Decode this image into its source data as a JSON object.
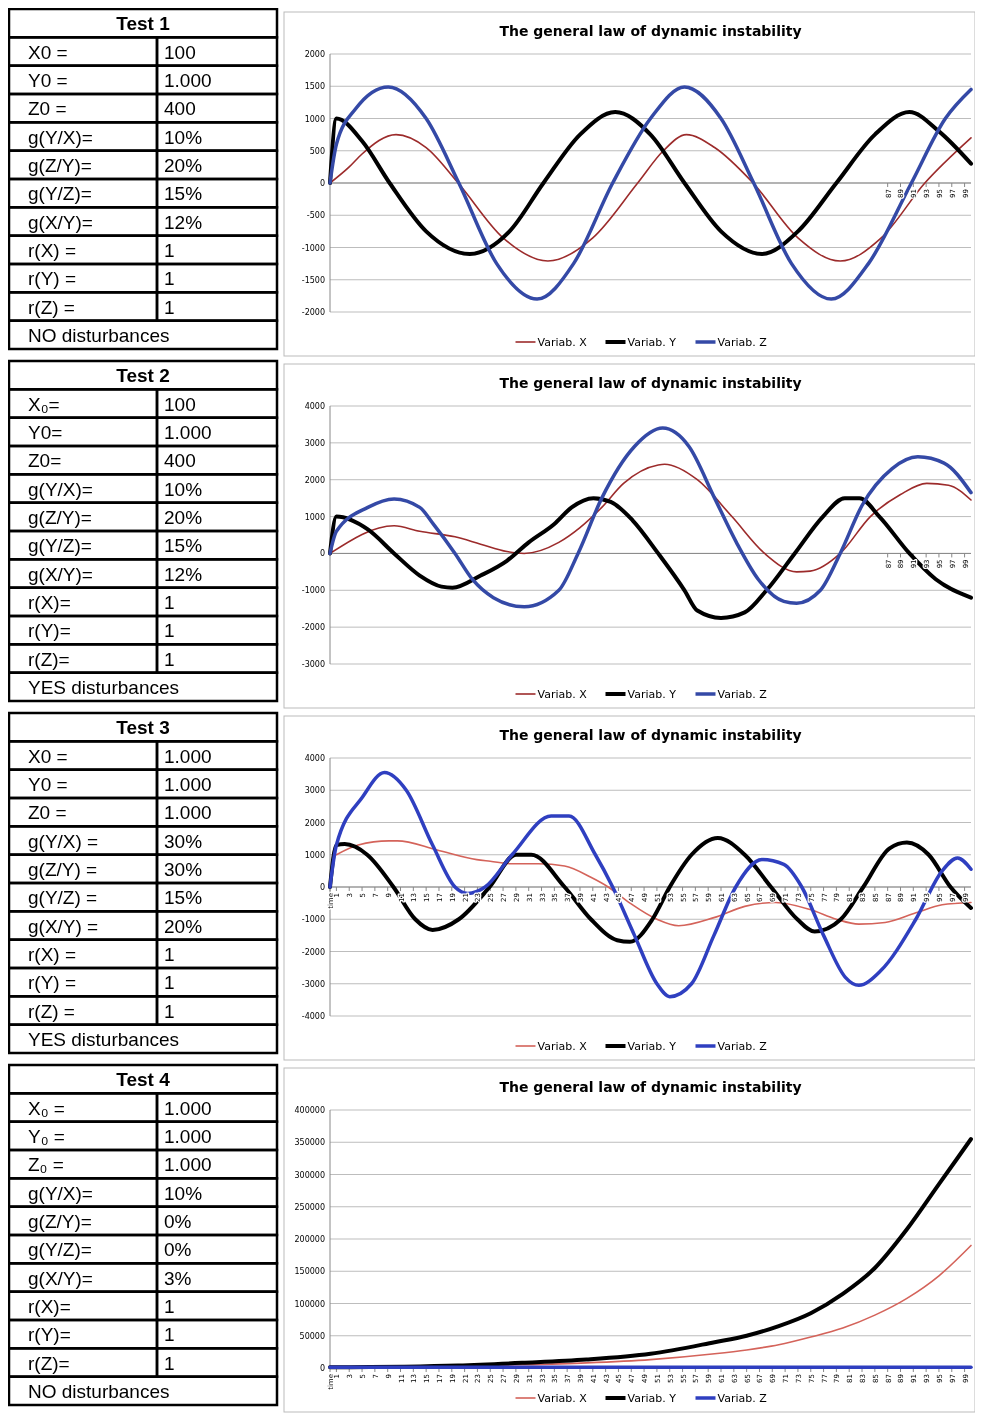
{
  "chart_data": [
    {
      "type": "other",
      "title": "Test 1",
      "annotations": [
        "X0  =",
        "100",
        "Y0  =",
        "1.000",
        "Z0  =",
        "400",
        "g(Y/X)=",
        "10%",
        "g(Z/Y)=",
        "20%",
        "g(Y/Z)=",
        "15%",
        "g(X/Y)=",
        "12%",
        "r(X) =",
        "1",
        "r(Y) =",
        "1",
        "r(Z) =",
        "1",
        "NO disturbances"
      ]
    },
    {
      "type": "line",
      "title": "The general law of dynamic instability",
      "xlim": [
        0,
        100
      ],
      "xticks": [
        87,
        89,
        91,
        93,
        95,
        97,
        99
      ],
      "ylim": [
        -2000,
        2000
      ],
      "yticks": [
        -2000,
        -1500,
        -1000,
        -500,
        0,
        500,
        1000,
        1500,
        2000
      ],
      "grid": "y",
      "legend": "bottom",
      "series": [
        {
          "name": "Variab. X",
          "color": "#9c2b2b",
          "x": [
            0,
            3,
            5,
            10.3,
            15,
            20,
            27,
            34,
            41,
            48,
            52,
            55.6,
            60,
            66,
            73,
            79.6,
            86,
            92.8,
            100
          ],
          "values": [
            0,
            250,
            450,
            750,
            550,
            0,
            -850,
            -1210,
            -850,
            0,
            500,
            750,
            550,
            0,
            -850,
            -1210,
            -850,
            0,
            700
          ]
        },
        {
          "name": "Variab. Y",
          "color": "#000000",
          "x": [
            0,
            1,
            5,
            9.3,
            15,
            21.8,
            28,
            33.3,
            39,
            44.5,
            50,
            55.3,
            61,
            67.4,
            73,
            79,
            85,
            90.4,
            95,
            100
          ],
          "values": [
            0,
            1000,
            650,
            0,
            -750,
            -1100,
            -750,
            0,
            750,
            1100,
            750,
            0,
            -750,
            -1100,
            -750,
            0,
            750,
            1100,
            800,
            300
          ]
        },
        {
          "name": "Variab. Z",
          "color": "#3449a6",
          "x": [
            0,
            1,
            4,
            9.1,
            15,
            20.1,
            26,
            32.3,
            38,
            44.1,
            50,
            55.3,
            61,
            66.1,
            72,
            78.2,
            84,
            90.7,
            96,
            100
          ],
          "values": [
            0,
            600,
            1150,
            1490,
            1000,
            0,
            -1250,
            -1800,
            -1250,
            0,
            1000,
            1490,
            1000,
            0,
            -1250,
            -1800,
            -1250,
            0,
            1000,
            1450
          ]
        }
      ]
    },
    {
      "type": "other",
      "title": "Test 2",
      "annotations": [
        "X₀=",
        "100",
        "Y0=",
        "1.000",
        "Z0=",
        "400",
        "g(Y/X)=",
        "10%",
        "g(Z/Y)=",
        "20%",
        "g(Y/Z)=",
        "15%",
        "g(X/Y)=",
        "12%",
        "r(X)=",
        "1",
        "r(Y)=",
        "1",
        "r(Z)=",
        "1",
        "YES  disturbances"
      ]
    },
    {
      "type": "line",
      "title": "The general law of dynamic instability",
      "xlim": [
        0,
        100
      ],
      "xticks": [
        87,
        89,
        91,
        93,
        95,
        97,
        99
      ],
      "ylim": [
        -3000,
        4000
      ],
      "yticks": [
        -3000,
        -2000,
        -1000,
        0,
        1000,
        2000,
        3000,
        4000
      ],
      "grid": "y",
      "legend": "bottom",
      "series": [
        {
          "name": "Variab. X",
          "color": "#9c2b2b",
          "x": [
            0,
            10,
            14,
            19.5,
            23.5,
            27.6,
            30.3,
            35.7,
            39,
            42.4,
            45.8,
            51.2,
            52.2,
            57.3,
            62.7,
            67.8,
            72.8,
            74.9,
            79.6,
            84.3,
            89,
            93.1,
            96.5,
            100
          ],
          "values": [
            0,
            750,
            600,
            450,
            250,
            50,
            0,
            300,
            700,
            1250,
            1900,
            2400,
            2420,
            2000,
            1000,
            0,
            -500,
            -480,
            0,
            1000,
            1600,
            1900,
            1850,
            1450
          ]
        },
        {
          "name": "Variab. Y",
          "color": "#000000",
          "x": [
            0,
            1,
            5.9,
            10,
            14,
            17.4,
            19.1,
            23.5,
            27.6,
            31,
            35,
            37.7,
            41.1,
            43.8,
            47.2,
            51.2,
            55.3,
            57.3,
            61,
            64.7,
            68.1,
            72.5,
            76.9,
            80.3,
            82.6,
            85.7,
            90.4,
            94.5,
            100
          ],
          "values": [
            0,
            1000,
            650,
            0,
            -600,
            -900,
            -930,
            -600,
            -200,
            300,
            800,
            1250,
            1500,
            1400,
            900,
            0,
            -1000,
            -1550,
            -1750,
            -1600,
            -1000,
            0,
            1000,
            1500,
            1500,
            1000,
            0,
            -700,
            -1200
          ]
        },
        {
          "name": "Variab. Z",
          "color": "#3449a6",
          "x": [
            0,
            1,
            5.9,
            10,
            14,
            16.1,
            19.5,
            22.2,
            25.5,
            30.3,
            35.7,
            38.7,
            42.4,
            47.5,
            51.9,
            56,
            60,
            63.4,
            66.8,
            70.8,
            72.8,
            76.5,
            79.6,
            83,
            87.7,
            91.7,
            95.8,
            100
          ],
          "values": [
            0,
            600,
            1250,
            1480,
            1250,
            800,
            0,
            -700,
            -1200,
            -1450,
            -1000,
            0,
            1500,
            2900,
            3400,
            2900,
            1500,
            300,
            -700,
            -1300,
            -1350,
            -1000,
            0,
            1300,
            2300,
            2620,
            2450,
            1650
          ]
        }
      ]
    },
    {
      "type": "other",
      "title": "Test 3",
      "annotations": [
        "X0 =",
        "1.000",
        "Y0 =",
        "1.000",
        "Z0 =",
        "1.000",
        "g(Y/X) =",
        "30%",
        "g(Z/Y) =",
        "30%",
        "g(Y/Z) =",
        "15%",
        "g(X/Y) =",
        "20%",
        "r(X) =",
        "1",
        "r(Y) =",
        "1",
        "r(Z) =",
        "1",
        "YES disturbances"
      ]
    },
    {
      "type": "line",
      "title": "The general law of dynamic instability",
      "xlim": [
        0,
        100
      ],
      "xticks": [
        {
          "value": 0,
          "label": "time"
        },
        1,
        3,
        5,
        7,
        9,
        11,
        13,
        15,
        17,
        19,
        21,
        23,
        25,
        27,
        29,
        31,
        33,
        35,
        37,
        39,
        41,
        43,
        45,
        47,
        49,
        51,
        53,
        55,
        57,
        59,
        61,
        63,
        65,
        67,
        69,
        71,
        73,
        75,
        77,
        79,
        81,
        83,
        85,
        87,
        89,
        91,
        93,
        95,
        97,
        99
      ],
      "ylim": [
        -4000,
        4000
      ],
      "yticks": [
        -4000,
        -3000,
        -2000,
        -1000,
        0,
        1000,
        2000,
        3000,
        4000
      ],
      "grid": "y",
      "legend": "bottom",
      "series": [
        {
          "name": "Variab. X",
          "color": "#d4635a",
          "x": [
            1,
            4.4,
            9.2,
            10.5,
            16.7,
            22.9,
            25,
            28.4,
            32.5,
            36.6,
            40.7,
            43.4,
            46.8,
            51,
            54.4,
            59.9,
            64.7,
            69.5,
            74.9,
            79,
            82.5,
            86.6,
            91.4,
            95.5,
            100
          ],
          "values": [
            1000,
            1300,
            1430,
            1430,
            1150,
            850,
            800,
            720,
            720,
            650,
            300,
            0,
            -500,
            -1000,
            -1200,
            -950,
            -600,
            -480,
            -700,
            -1000,
            -1150,
            -1100,
            -800,
            -550,
            -480
          ]
        },
        {
          "name": "Variab. Y",
          "color": "#000000",
          "x": [
            0,
            1,
            2.3,
            5.8,
            9.9,
            13.3,
            16,
            20.1,
            24.9,
            29,
            31.4,
            36.6,
            40.7,
            44.8,
            46.8,
            50.3,
            53,
            56.4,
            60.5,
            64.7,
            68.8,
            72.9,
            75.6,
            79.7,
            83.2,
            87.3,
            90,
            93.4,
            96.8,
            100
          ],
          "values": [
            0,
            1300,
            1330,
            1000,
            0,
            -1000,
            -1330,
            -1000,
            0,
            1000,
            1000,
            0,
            -1000,
            -1650,
            -1700,
            -1000,
            0,
            1000,
            1520,
            1000,
            0,
            -1000,
            -1380,
            -1000,
            0,
            1200,
            1380,
            1000,
            0,
            -650
          ]
        },
        {
          "name": "Variab. Z",
          "color": "#2f3fc0",
          "x": [
            0,
            1,
            5.1,
            8.5,
            11.9,
            16,
            19.5,
            21.5,
            24.2,
            28.4,
            34.5,
            37.3,
            41.4,
            44.1,
            47.5,
            51,
            53,
            56.4,
            59.9,
            63.3,
            67.4,
            70.8,
            73.6,
            77,
            80.4,
            82.5,
            85.9,
            91.4,
            95.5,
            97.9,
            100
          ],
          "values": [
            0,
            1300,
            2800,
            3550,
            3000,
            1300,
            0,
            -200,
            0,
            1000,
            2200,
            2200,
            1000,
            0,
            -1500,
            -3000,
            -3400,
            -3000,
            -1500,
            0,
            850,
            700,
            0,
            -1500,
            -2800,
            -3050,
            -2600,
            -1000,
            500,
            900,
            550
          ]
        }
      ]
    },
    {
      "type": "other",
      "title": "Test 4",
      "annotations": [
        "X₀ =",
        "1.000",
        "Y₀ =",
        "1.000",
        "Z₀ =",
        "1.000",
        "g(Y/X)=",
        "10%",
        "g(Z/Y)=",
        "0%",
        "g(Y/Z)=",
        "0%",
        "g(X/Y)=",
        "3%",
        "r(X)=",
        "1",
        "r(Y)=",
        "1",
        "r(Z)=",
        "1",
        "NO disturbances"
      ]
    },
    {
      "type": "line",
      "title": "The general law of dynamic instability",
      "xlim": [
        0,
        100
      ],
      "xticks": [
        {
          "value": 0,
          "label": "time"
        },
        1,
        3,
        5,
        7,
        9,
        11,
        13,
        15,
        17,
        19,
        21,
        23,
        25,
        27,
        29,
        31,
        33,
        35,
        37,
        39,
        41,
        43,
        45,
        47,
        49,
        51,
        53,
        55,
        57,
        59,
        61,
        63,
        65,
        67,
        69,
        71,
        73,
        75,
        77,
        79,
        81,
        83,
        85,
        87,
        89,
        91,
        93,
        95,
        97,
        99
      ],
      "ylim": [
        0,
        400000
      ],
      "yticks": [
        0,
        50000,
        100000,
        150000,
        200000,
        250000,
        300000,
        350000,
        400000
      ],
      "grid": "y",
      "legend": "bottom",
      "series": [
        {
          "name": "Variab. X",
          "color": "#d4635a",
          "x": [
            0,
            20,
            30,
            40,
            50,
            60,
            65,
            70,
            75,
            80,
            85,
            90,
            95,
            100
          ],
          "values": [
            1000,
            3000,
            5000,
            8000,
            13000,
            22000,
            28000,
            36000,
            48000,
            62000,
            82000,
            108000,
            143000,
            190000
          ]
        },
        {
          "name": "Variab. Y",
          "color": "#000000",
          "x": [
            0,
            20,
            30,
            40,
            50,
            60,
            65,
            70,
            75,
            80,
            85,
            90,
            95,
            100
          ],
          "values": [
            1000,
            4000,
            8000,
            13000,
            22000,
            40000,
            50000,
            65000,
            85000,
            115000,
            155000,
            215000,
            285000,
            355000
          ]
        },
        {
          "name": "Variab. Z",
          "color": "#2f3fc0",
          "x": [
            0,
            50,
            100
          ],
          "values": [
            1000,
            1000,
            1000
          ]
        }
      ]
    }
  ]
}
